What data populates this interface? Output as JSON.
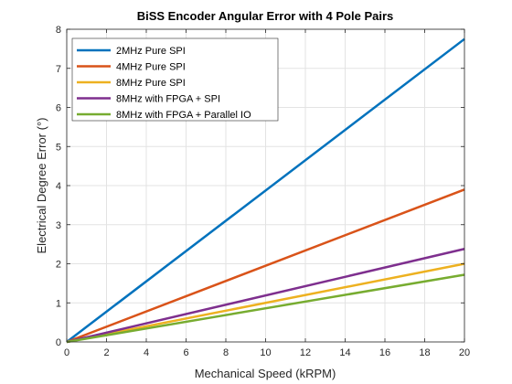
{
  "chart_data": {
    "type": "line",
    "title": "BiSS Encoder Angular Error with 4 Pole Pairs",
    "xlabel": "Mechanical Speed (kRPM)",
    "ylabel": "Electrical Degree Error (°)",
    "xlim": [
      0,
      20
    ],
    "ylim": [
      0,
      8
    ],
    "xticks": [
      "0",
      "2",
      "4",
      "6",
      "8",
      "10",
      "12",
      "14",
      "16",
      "18",
      "20"
    ],
    "yticks": [
      "0",
      "1",
      "2",
      "3",
      "4",
      "5",
      "6",
      "7",
      "8"
    ],
    "grid": true,
    "legend_position": "top-left",
    "series": [
      {
        "name": "2MHz Pure SPI",
        "color": "#0072bd",
        "x": [
          0,
          20
        ],
        "y": [
          0,
          7.75
        ]
      },
      {
        "name": "4MHz Pure SPI",
        "color": "#d95319",
        "x": [
          0,
          20
        ],
        "y": [
          0,
          3.9
        ]
      },
      {
        "name": "8MHz Pure SPI",
        "color": "#edb120",
        "x": [
          0,
          20
        ],
        "y": [
          0,
          2.0
        ]
      },
      {
        "name": "8MHz with FPGA + SPI",
        "color": "#7e2f8e",
        "x": [
          0,
          20
        ],
        "y": [
          0,
          2.38
        ]
      },
      {
        "name": "8MHz with FPGA + Parallel IO",
        "color": "#77ac30",
        "x": [
          0,
          20
        ],
        "y": [
          0,
          1.72
        ]
      }
    ]
  }
}
